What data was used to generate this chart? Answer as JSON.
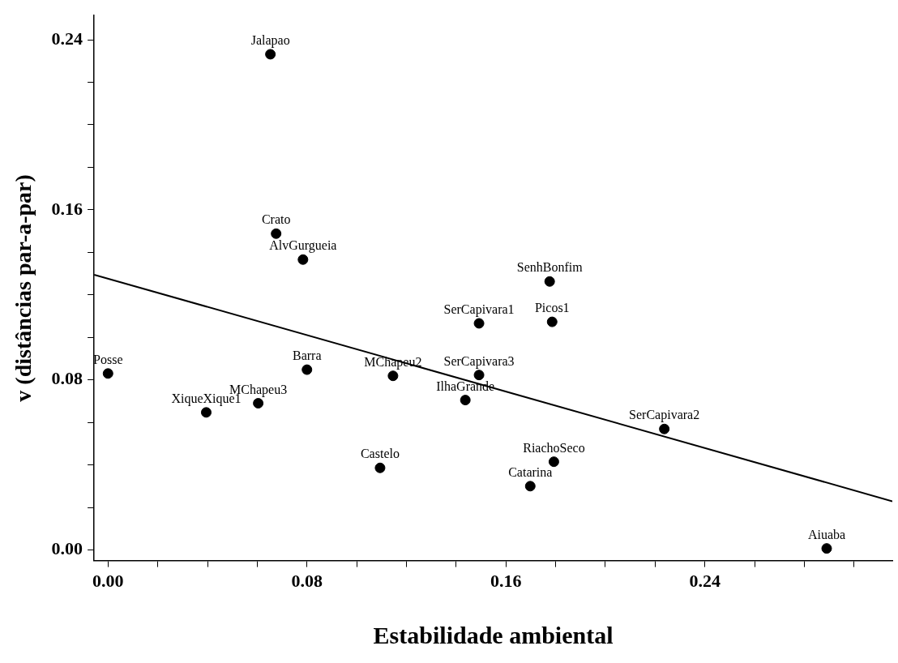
{
  "chart_data": {
    "type": "scatter",
    "xlabel": "Estabilidade ambiental",
    "ylabel": "v (distâncias par-a-par)",
    "xlim": [
      -0.0056,
      0.3154
    ],
    "ylim": [
      -0.005,
      0.2514
    ],
    "xticks": [
      {
        "value": 0,
        "label": "0.00"
      },
      {
        "value": 0.02,
        "label": null
      },
      {
        "value": 0.04,
        "label": null
      },
      {
        "value": 0.06,
        "label": null
      },
      {
        "value": 0.08,
        "label": "0.08"
      },
      {
        "value": 0.1,
        "label": null
      },
      {
        "value": 0.12,
        "label": null
      },
      {
        "value": 0.14,
        "label": null
      },
      {
        "value": 0.16,
        "label": "0.16"
      },
      {
        "value": 0.18,
        "label": null
      },
      {
        "value": 0.2,
        "label": null
      },
      {
        "value": 0.22,
        "label": null
      },
      {
        "value": 0.24,
        "label": "0.24"
      },
      {
        "value": 0.26,
        "label": null
      },
      {
        "value": 0.28,
        "label": null
      },
      {
        "value": 0.3,
        "label": null
      }
    ],
    "yticks": [
      {
        "value": 0,
        "label": "0.00"
      },
      {
        "value": 0.02,
        "label": null
      },
      {
        "value": 0.04,
        "label": null
      },
      {
        "value": 0.06,
        "label": null
      },
      {
        "value": 0.08,
        "label": "0.08"
      },
      {
        "value": 0.1,
        "label": null
      },
      {
        "value": 0.12,
        "label": null
      },
      {
        "value": 0.14,
        "label": null
      },
      {
        "value": 0.16,
        "label": "0.16"
      },
      {
        "value": 0.18,
        "label": null
      },
      {
        "value": 0.2,
        "label": null
      },
      {
        "value": 0.22,
        "label": null
      },
      {
        "value": 0.24,
        "label": "0.24"
      }
    ],
    "grid": false,
    "legend": false,
    "series": [
      {
        "marker": "circle",
        "color": "#000000",
        "x": [
          0.0653,
          0.0676,
          0.0784,
          0.1776,
          0.1492,
          0.1786,
          0,
          0.08,
          0.1492,
          0.1146,
          0.0604,
          0.0395,
          0.1437,
          0.2237,
          0.1094,
          0.1793,
          0.1698,
          0.289
        ],
        "values": [
          0.2332,
          0.1488,
          0.1366,
          0.1263,
          0.1066,
          0.1073,
          0.083,
          0.0848,
          0.0823,
          0.0819,
          0.069,
          0.0647,
          0.0705,
          0.0569,
          0.0386,
          0.0415,
          0.03,
          0.0007
        ]
      },
      {
        "type": "line",
        "marker": "none",
        "color": "#000000",
        "x": [
          -0.0056,
          0.3154
        ],
        "values": [
          0.1295,
          0.0229
        ]
      }
    ],
    "annotations": [
      {
        "text": "Jalapao",
        "x": 0.0653,
        "y": 0.2332
      },
      {
        "text": "Crato",
        "x": 0.0676,
        "y": 0.1488
      },
      {
        "text": "AlvGurgueia",
        "x": 0.0784,
        "y": 0.1366
      },
      {
        "text": "SenhBonfim",
        "x": 0.1776,
        "y": 0.1263
      },
      {
        "text": "SerCapivara1",
        "x": 0.1492,
        "y": 0.1066
      },
      {
        "text": "Picos1",
        "x": 0.1786,
        "y": 0.1073
      },
      {
        "text": "Posse",
        "x": 0,
        "y": 0.083
      },
      {
        "text": "Barra",
        "x": 0.08,
        "y": 0.0848
      },
      {
        "text": "SerCapivara3",
        "x": 0.1492,
        "y": 0.0823
      },
      {
        "text": "MChapeu2",
        "x": 0.1146,
        "y": 0.0819
      },
      {
        "text": "MChapeu3",
        "x": 0.0604,
        "y": 0.069
      },
      {
        "text": "XiqueXique1",
        "x": 0.0395,
        "y": 0.0647
      },
      {
        "text": "IlhaGrande",
        "x": 0.1437,
        "y": 0.0705
      },
      {
        "text": "SerCapivara2",
        "x": 0.2237,
        "y": 0.0569
      },
      {
        "text": "Castelo",
        "x": 0.1094,
        "y": 0.0386
      },
      {
        "text": "RiachoSeco",
        "x": 0.1793,
        "y": 0.0415
      },
      {
        "text": "Catarina",
        "x": 0.1698,
        "y": 0.03
      },
      {
        "text": "Aiuaba",
        "x": 0.289,
        "y": 0.0007
      }
    ]
  }
}
